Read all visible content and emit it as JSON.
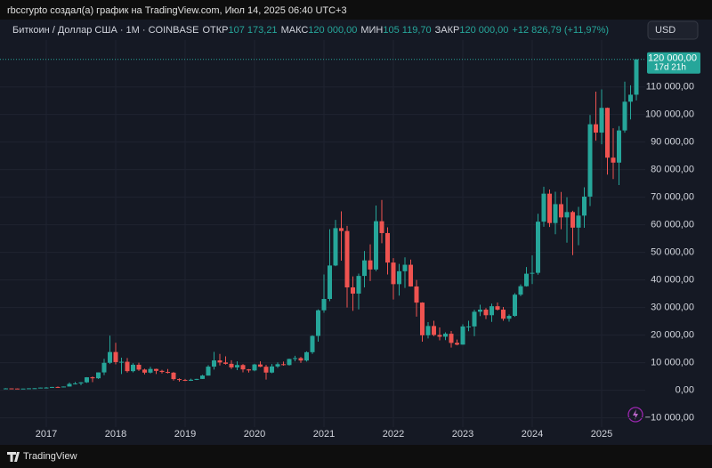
{
  "header_text": "rbccrypto создал(а) график на TradingView.com, Июл 14, 2025 06:40 UTC+3",
  "footer_brand": "TradingView",
  "chart_data": {
    "type": "candlestick",
    "symbol": "Биткоин / Доллар США · 1M · COINBASE",
    "readout": [
      {
        "label": "ОТКР",
        "value_label": "107 173,21"
      },
      {
        "label": "МАКС",
        "value_label": "120 000,00"
      },
      {
        "label": "МИН",
        "value_label": "105 119,70"
      },
      {
        "label": "ЗАКР",
        "value_label": "120 000,00"
      }
    ],
    "change": "+12 826,79 (+11,97%)",
    "currency": "USD",
    "last_price_label": "120 000,00",
    "countdown": "17d 21h",
    "up_color": "#26a69a",
    "down_color": "#ef5350",
    "grid": true,
    "categories": [
      null,
      null,
      null,
      null,
      null,
      null,
      null,
      "2017",
      null,
      null,
      null,
      null,
      null,
      null,
      null,
      null,
      null,
      null,
      null,
      "2018",
      null,
      null,
      null,
      null,
      null,
      null,
      null,
      null,
      null,
      null,
      null,
      "2019",
      null,
      null,
      null,
      null,
      null,
      null,
      null,
      null,
      null,
      null,
      null,
      "2020",
      null,
      null,
      null,
      null,
      null,
      null,
      null,
      null,
      null,
      null,
      null,
      "2021",
      null,
      null,
      null,
      null,
      null,
      null,
      null,
      null,
      null,
      null,
      null,
      "2022",
      null,
      null,
      null,
      null,
      null,
      null,
      null,
      null,
      null,
      null,
      null,
      "2023",
      null,
      null,
      null,
      null,
      null,
      null,
      null,
      null,
      null,
      null,
      null,
      "2024",
      null,
      null,
      null,
      null,
      null,
      null,
      null,
      null,
      null,
      null,
      null,
      "2025",
      null,
      null,
      null,
      null,
      null,
      null
    ],
    "open": [
      530,
      670,
      620,
      575,
      610,
      700,
      740,
      960,
      970,
      1190,
      1080,
      1350,
      2300,
      2480,
      2870,
      4700,
      4340,
      6470,
      9950,
      13860,
      10220,
      10330,
      6930,
      9240,
      7490,
      6390,
      7730,
      7030,
      6630,
      6370,
      4040,
      3740,
      3440,
      3810,
      4100,
      5320,
      8560,
      10820,
      10080,
      9590,
      8290,
      9150,
      7560,
      7190,
      9350,
      8530,
      6410,
      8630,
      9450,
      9140,
      11350,
      11650,
      10780,
      13800,
      19700,
      28990,
      33110,
      45240,
      58800,
      57750,
      37300,
      35040,
      41460,
      47100,
      43790,
      61300,
      57000,
      46310,
      38480,
      43160,
      45510,
      37640,
      31790,
      19940,
      23300,
      20050,
      19420,
      20490,
      17170,
      16550,
      23130,
      23140,
      28470,
      29230,
      27210,
      30470,
      29230,
      25940,
      26970,
      34660,
      37720,
      42270,
      42580,
      61130,
      71290,
      60640,
      67490,
      62680,
      64620,
      58970,
      63330,
      70220,
      96450,
      93430,
      102410,
      84350,
      82550,
      94210,
      104640,
      107173.21
    ],
    "high": [
      780,
      700,
      630,
      630,
      720,
      750,
      980,
      1160,
      1200,
      1350,
      1360,
      2800,
      3000,
      2950,
      4750,
      5000,
      6500,
      11400,
      19800,
      17200,
      11800,
      11700,
      9800,
      10000,
      7800,
      8500,
      7800,
      7400,
      7700,
      6600,
      4300,
      4100,
      4200,
      4150,
      5600,
      9100,
      13900,
      13200,
      12300,
      10900,
      10500,
      9500,
      7700,
      9600,
      10500,
      9200,
      9500,
      10100,
      10400,
      11450,
      12500,
      12100,
      14100,
      19900,
      29300,
      42000,
      58400,
      61800,
      64900,
      59600,
      41300,
      42300,
      50500,
      52900,
      67000,
      69000,
      59100,
      47900,
      45800,
      48200,
      47400,
      40000,
      31900,
      24700,
      25200,
      22800,
      21000,
      21500,
      18400,
      23900,
      25200,
      29200,
      31000,
      29800,
      31400,
      31800,
      30200,
      27500,
      35200,
      38400,
      44700,
      48900,
      64000,
      73800,
      72800,
      72000,
      71900,
      70000,
      65100,
      66500,
      73600,
      99800,
      108300,
      109100,
      102500,
      95000,
      95800,
      111900,
      110600,
      120000
    ],
    "low": [
      520,
      580,
      530,
      590,
      600,
      690,
      740,
      750,
      910,
      890,
      1060,
      1350,
      2100,
      1800,
      2670,
      2950,
      4100,
      5500,
      9500,
      9400,
      5900,
      6400,
      6500,
      7000,
      5750,
      6100,
      5900,
      6100,
      6100,
      3500,
      3150,
      3350,
      3370,
      3700,
      4050,
      5300,
      7500,
      9000,
      9300,
      7700,
      7300,
      6500,
      6400,
      6900,
      8400,
      3850,
      6150,
      8100,
      8900,
      8950,
      10500,
      9900,
      10400,
      13200,
      17600,
      28100,
      32300,
      45000,
      47000,
      30000,
      28800,
      29300,
      37300,
      39600,
      43200,
      53300,
      42000,
      32900,
      34300,
      37100,
      37600,
      26700,
      17600,
      18800,
      19600,
      18100,
      18200,
      15500,
      16300,
      16500,
      21400,
      19600,
      26900,
      25800,
      24800,
      28900,
      25200,
      24900,
      26600,
      34100,
      37600,
      38500,
      41900,
      59300,
      59200,
      56600,
      58400,
      53500,
      49000,
      52600,
      58900,
      66800,
      90500,
      89200,
      78200,
      76600,
      74400,
      93400,
      98200,
      105119.7
    ],
    "close": [
      670,
      620,
      575,
      610,
      700,
      740,
      960,
      970,
      1190,
      1080,
      1350,
      2300,
      2480,
      2870,
      4700,
      4340,
      6470,
      9950,
      13860,
      10220,
      10330,
      6930,
      9240,
      7490,
      6390,
      7730,
      7030,
      6630,
      6370,
      4040,
      3740,
      3440,
      3810,
      4100,
      5320,
      8560,
      10820,
      10080,
      9590,
      8290,
      9150,
      7560,
      7190,
      9350,
      8530,
      6410,
      8630,
      9450,
      9140,
      11350,
      11650,
      10780,
      13800,
      19700,
      28990,
      33110,
      45240,
      58800,
      57750,
      37300,
      35040,
      41460,
      47100,
      43790,
      61300,
      57000,
      46310,
      38480,
      43160,
      45510,
      37640,
      31790,
      19940,
      23300,
      20050,
      19420,
      20490,
      17170,
      16550,
      23130,
      23140,
      28470,
      29230,
      27210,
      30470,
      29230,
      25940,
      26970,
      34660,
      37720,
      42270,
      42580,
      61130,
      71290,
      60640,
      67490,
      62680,
      64620,
      58970,
      63330,
      70220,
      96450,
      93430,
      102410,
      84350,
      82550,
      94210,
      104640,
      107173.21,
      120000
    ],
    "ylim": [
      -14000,
      127000
    ],
    "yticks": [
      {
        "value": -10000,
        "label": "−10 000,00"
      },
      {
        "value": 0,
        "label": "0,00"
      },
      {
        "value": 10000,
        "label": "10 000,00"
      },
      {
        "value": 20000,
        "label": "20 000,00"
      },
      {
        "value": 30000,
        "label": "30 000,00"
      },
      {
        "value": 40000,
        "label": "40 000,00"
      },
      {
        "value": 50000,
        "label": "50 000,00"
      },
      {
        "value": 60000,
        "label": "60 000,00"
      },
      {
        "value": 70000,
        "label": "70 000,00"
      },
      {
        "value": 80000,
        "label": "80 000,00"
      },
      {
        "value": 90000,
        "label": "90 000,00"
      },
      {
        "value": 100000,
        "label": "100 000,00"
      },
      {
        "value": 110000,
        "label": "110 000,00"
      }
    ]
  }
}
